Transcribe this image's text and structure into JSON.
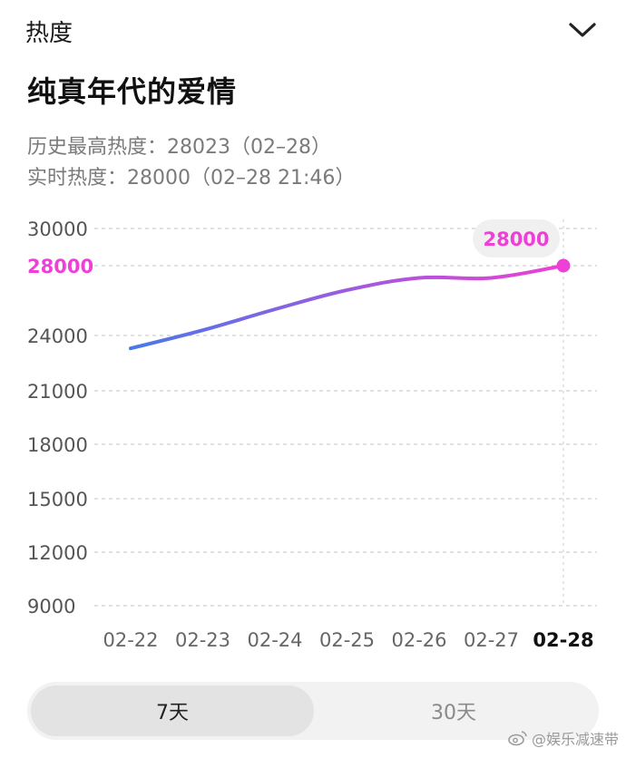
{
  "header": {
    "title": "热度"
  },
  "drama": {
    "title": "纯真年代的爱情"
  },
  "stats": {
    "peak": "历史最高热度：28023（02–28）",
    "realtime": "实时热度：28000（02–28 21:46）"
  },
  "chart_data": {
    "type": "line",
    "categories": [
      "02-22",
      "02-23",
      "02-24",
      "02-25",
      "02-26",
      "02-27",
      "02-28"
    ],
    "series": [
      {
        "values": [
          23300,
          24300,
          25500,
          26600,
          27300,
          27300,
          28000
        ]
      }
    ],
    "y_ticks": [
      "30000",
      "24000",
      "21000",
      "18000",
      "15000",
      "12000",
      "9000"
    ],
    "highlight": {
      "label": "28000",
      "value": 28000,
      "index": 6
    },
    "grid": true,
    "colors": {
      "line_start": "#4a78e8",
      "line_end": "#ee3fd6",
      "highlight": "#ee3fd6"
    }
  },
  "tabs": [
    {
      "label": "7天",
      "selected": true
    },
    {
      "label": "30天",
      "selected": false
    }
  ],
  "watermark": {
    "text": "@娱乐减速带",
    "icon": "weibo-icon"
  }
}
